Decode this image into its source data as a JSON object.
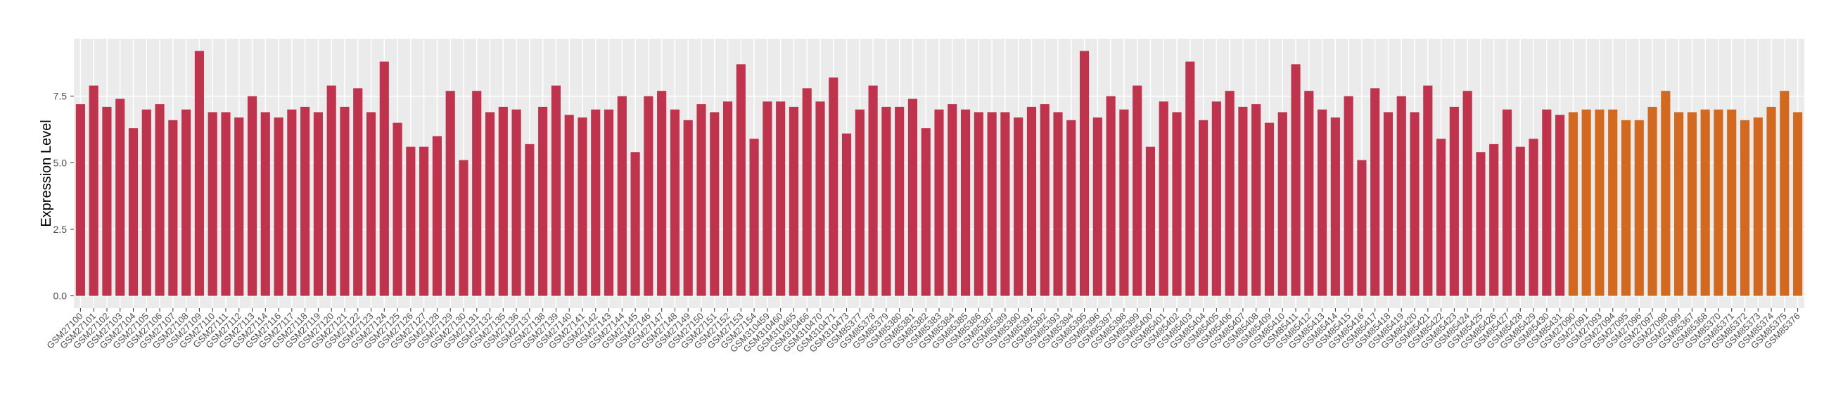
{
  "chart_data": {
    "type": "bar",
    "y_label": "Expression Level",
    "categories": [
      "GSM27100",
      "GSM27101",
      "GSM27102",
      "GSM27103",
      "GSM27104",
      "GSM27105",
      "GSM27106",
      "GSM27107",
      "GSM27108",
      "GSM27109",
      "GSM27110",
      "GSM27111",
      "GSM27112",
      "GSM27113",
      "GSM27114",
      "GSM27116",
      "GSM27117",
      "GSM27118",
      "GSM27119",
      "GSM27120",
      "GSM27121",
      "GSM27122",
      "GSM27123",
      "GSM27124",
      "GSM27125",
      "GSM27126",
      "GSM27127",
      "GSM27128",
      "GSM27129",
      "GSM27130",
      "GSM27131",
      "GSM27132",
      "GSM27135",
      "GSM27136",
      "GSM27137",
      "GSM27138",
      "GSM27139",
      "GSM27140",
      "GSM27141",
      "GSM27142",
      "GSM27143",
      "GSM27144",
      "GSM27145",
      "GSM27146",
      "GSM27147",
      "GSM27148",
      "GSM27149",
      "GSM27150",
      "GSM27151",
      "GSM27152",
      "GSM27153",
      "GSM27154",
      "GSM310459",
      "GSM310460",
      "GSM310465",
      "GSM310466",
      "GSM310470",
      "GSM310471",
      "GSM310473",
      "GSM85377",
      "GSM85378",
      "GSM85379",
      "GSM85380",
      "GSM85381",
      "GSM85382",
      "GSM85383",
      "GSM85384",
      "GSM85385",
      "GSM85386",
      "GSM85387",
      "GSM85389",
      "GSM85390",
      "GSM85391",
      "GSM85392",
      "GSM85393",
      "GSM85394",
      "GSM85395",
      "GSM85396",
      "GSM85397",
      "GSM85398",
      "GSM85399",
      "GSM85400",
      "GSM85401",
      "GSM85402",
      "GSM85403",
      "GSM85404",
      "GSM85405",
      "GSM85406",
      "GSM85407",
      "GSM85408",
      "GSM85409",
      "GSM85410",
      "GSM85411",
      "GSM85412",
      "GSM85413",
      "GSM85414",
      "GSM85415",
      "GSM85416",
      "GSM85417",
      "GSM85418",
      "GSM85419",
      "GSM85420",
      "GSM85421",
      "GSM85422",
      "GSM85423",
      "GSM85424",
      "GSM85425",
      "GSM85426",
      "GSM85427",
      "GSM85428",
      "GSM85429",
      "GSM85430",
      "GSM85431",
      "GSM27090",
      "GSM27091",
      "GSM27093",
      "GSM27094",
      "GSM27095",
      "GSM27096",
      "GSM27097",
      "GSM27098",
      "GSM27099",
      "GSM85367",
      "GSM85368",
      "GSM85370",
      "GSM85371",
      "GSM85372",
      "GSM85373",
      "GSM85374",
      "GSM85375",
      "GSM85376"
    ],
    "values": [
      7.2,
      7.9,
      7.1,
      7.4,
      6.3,
      7.0,
      7.2,
      6.6,
      7.0,
      9.2,
      6.9,
      6.9,
      6.7,
      7.5,
      6.9,
      6.7,
      7.0,
      7.1,
      6.9,
      7.9,
      7.1,
      7.8,
      6.9,
      8.8,
      6.5,
      5.6,
      5.6,
      6.0,
      7.7,
      5.1,
      7.7,
      6.9,
      7.1,
      7.0,
      5.7,
      7.1,
      7.9,
      6.8,
      6.7,
      7.0,
      7.0,
      7.5,
      5.4,
      7.5,
      7.7,
      7.0,
      6.6,
      7.2,
      6.9,
      7.3,
      8.7,
      5.9,
      7.3,
      7.3,
      7.1,
      7.8,
      7.3,
      8.2,
      6.1,
      7.0,
      7.9,
      7.1,
      7.1,
      7.4,
      6.3,
      7.0,
      7.2,
      7.0,
      6.9,
      6.9,
      6.9,
      6.7,
      7.1,
      7.2,
      6.9,
      6.6,
      9.2,
      6.7,
      7.5,
      7.0,
      7.9,
      5.6,
      7.3,
      6.9,
      8.8,
      6.6,
      7.3,
      7.7,
      7.1,
      7.2,
      6.5,
      6.9,
      8.7,
      7.7,
      7.0,
      6.7,
      7.5,
      5.1,
      7.8,
      6.9,
      7.5,
      6.9,
      7.9,
      5.9,
      7.1,
      7.7,
      5.4,
      5.7,
      7.0,
      5.6,
      5.9,
      7.0,
      6.8,
      6.9,
      7.0,
      7.0,
      7.0,
      6.6,
      6.6,
      7.1,
      7.7,
      6.9,
      6.9,
      7.0,
      7.0,
      7.0,
      6.6,
      6.7,
      7.1,
      7.7,
      6.9
    ],
    "colors": [
      "#c0334d",
      "#c0334d",
      "#c0334d",
      "#c0334d",
      "#c0334d",
      "#c0334d",
      "#c0334d",
      "#c0334d",
      "#c0334d",
      "#c0334d",
      "#c0334d",
      "#c0334d",
      "#c0334d",
      "#c0334d",
      "#c0334d",
      "#c0334d",
      "#c0334d",
      "#c0334d",
      "#c0334d",
      "#c0334d",
      "#c0334d",
      "#c0334d",
      "#c0334d",
      "#c0334d",
      "#c0334d",
      "#c0334d",
      "#c0334d",
      "#c0334d",
      "#c0334d",
      "#c0334d",
      "#c0334d",
      "#c0334d",
      "#c0334d",
      "#c0334d",
      "#c0334d",
      "#c0334d",
      "#c0334d",
      "#c0334d",
      "#c0334d",
      "#c0334d",
      "#c0334d",
      "#c0334d",
      "#c0334d",
      "#c0334d",
      "#c0334d",
      "#c0334d",
      "#c0334d",
      "#c0334d",
      "#c0334d",
      "#c0334d",
      "#c0334d",
      "#c0334d",
      "#c0334d",
      "#c0334d",
      "#c0334d",
      "#c0334d",
      "#c0334d",
      "#c0334d",
      "#c0334d",
      "#c0334d",
      "#c0334d",
      "#c0334d",
      "#c0334d",
      "#c0334d",
      "#c0334d",
      "#c0334d",
      "#c0334d",
      "#c0334d",
      "#c0334d",
      "#c0334d",
      "#c0334d",
      "#c0334d",
      "#c0334d",
      "#c0334d",
      "#c0334d",
      "#c0334d",
      "#c0334d",
      "#c0334d",
      "#c0334d",
      "#c0334d",
      "#c0334d",
      "#c0334d",
      "#c0334d",
      "#c0334d",
      "#c0334d",
      "#c0334d",
      "#c0334d",
      "#c0334d",
      "#c0334d",
      "#c0334d",
      "#c0334d",
      "#c0334d",
      "#c0334d",
      "#c0334d",
      "#c0334d",
      "#c0334d",
      "#c0334d",
      "#c0334d",
      "#c0334d",
      "#c0334d",
      "#c0334d",
      "#c0334d",
      "#c0334d",
      "#c0334d",
      "#c0334d",
      "#c0334d",
      "#c0334d",
      "#c0334d",
      "#c0334d",
      "#c0334d",
      "#c0334d",
      "#c0334d",
      "#c0334d",
      "#d2691e",
      "#d2691e",
      "#d2691e",
      "#d2691e",
      "#d2691e",
      "#d2691e",
      "#d2691e",
      "#d2691e",
      "#d2691e",
      "#d2691e",
      "#d2691e",
      "#d2691e",
      "#d2691e",
      "#d2691e",
      "#d2691e",
      "#d2691e",
      "#d2691e",
      "#d2691e"
    ],
    "ylim": [
      -0.46,
      9.66
    ],
    "yticks": [
      {
        "value": 0,
        "label": "0.0"
      },
      2.5,
      {
        "value": 5,
        "label": "5.0"
      },
      7.5
    ],
    "grid": true
  }
}
